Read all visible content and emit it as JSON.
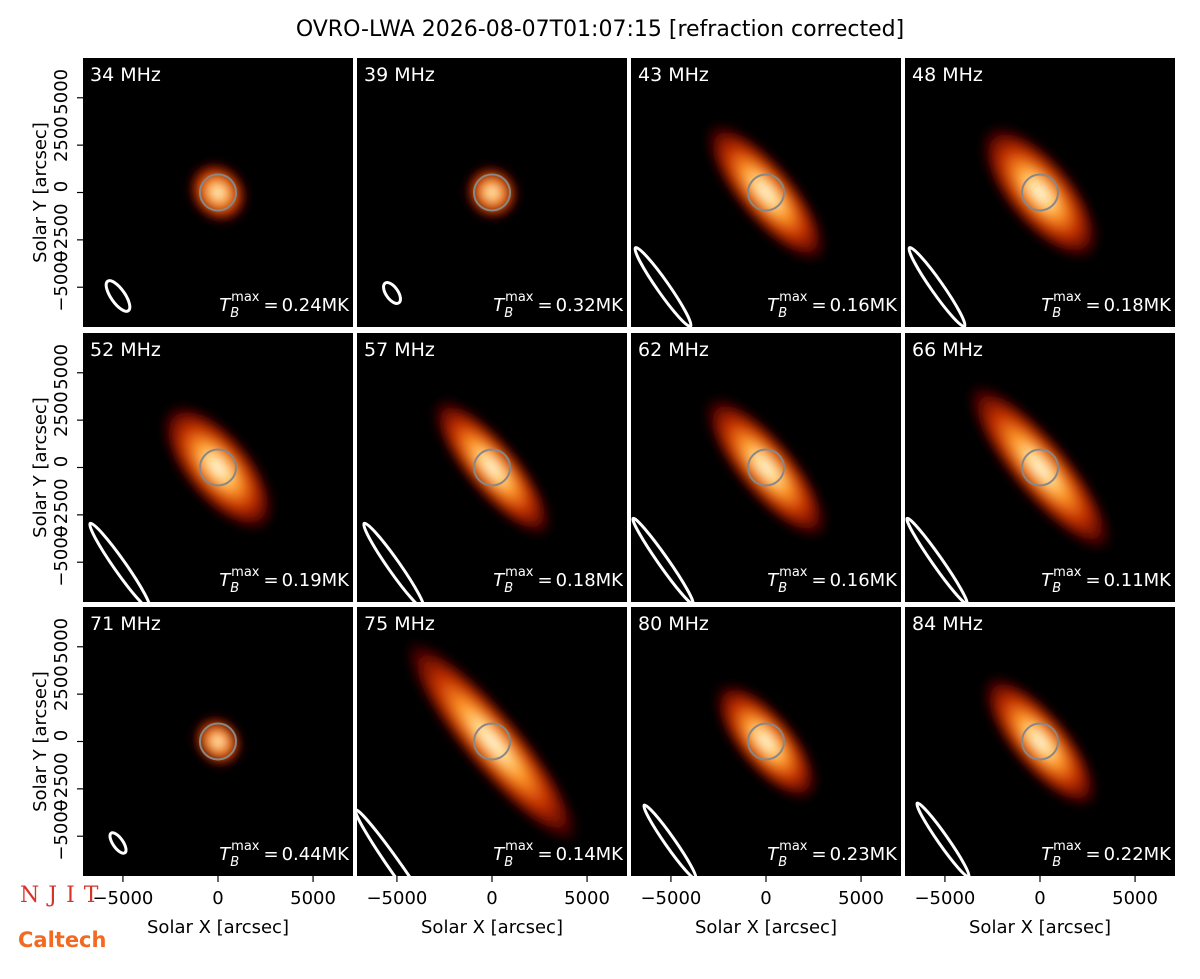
{
  "chart_data": {
    "type": "image_grid",
    "title": "OVRO-LWA 2026-08-07T01:07:15 [refraction corrected]",
    "xlabel": "Solar X [arcsec]",
    "ylabel": "Solar Y [arcsec]",
    "xlim": [
      -7100,
      7100
    ],
    "ylim": [
      -7100,
      7100
    ],
    "xticks": [
      {
        "value": -5000,
        "label": "−5000"
      },
      0,
      5000
    ],
    "yticks": [
      {
        "value": -5000,
        "label": "−5000"
      },
      {
        "value": -2500,
        "label": "−2500"
      },
      0,
      2500,
      5000
    ],
    "tb_symbol": "T",
    "tb_sub": "B",
    "tb_sup": "max",
    "tb_eq": "=",
    "panels": [
      {
        "label": "34 MHz",
        "tb": "0.24MK"
      },
      {
        "label": "39 MHz",
        "tb": "0.32MK"
      },
      {
        "label": "43 MHz",
        "tb": "0.16MK"
      },
      {
        "label": "48 MHz",
        "tb": "0.18MK"
      },
      {
        "label": "52 MHz",
        "tb": "0.19MK"
      },
      {
        "label": "57 MHz",
        "tb": "0.18MK"
      },
      {
        "label": "62 MHz",
        "tb": "0.16MK"
      },
      {
        "label": "66 MHz",
        "tb": "0.11MK"
      },
      {
        "label": "71 MHz",
        "tb": "0.44MK"
      },
      {
        "label": "75 MHz",
        "tb": "0.14MK"
      },
      {
        "label": "80 MHz",
        "tb": "0.23MK"
      },
      {
        "label": "84 MHz",
        "tb": "0.22MK"
      }
    ]
  },
  "logos": [
    "NJIT",
    "Caltech"
  ]
}
